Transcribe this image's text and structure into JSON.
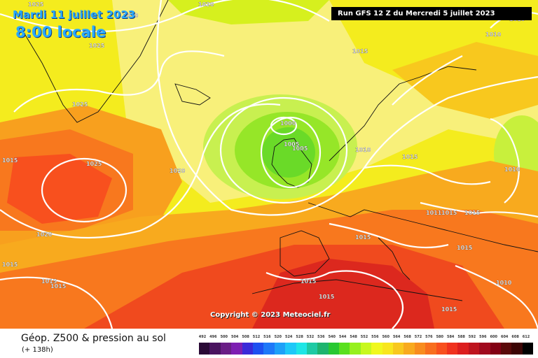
{
  "header": {
    "date": "Mardi 11 juillet 2023",
    "time": "8:00 locale",
    "run": "Run GFS 12 Z du Mercredi 5 juillet 2023"
  },
  "copyright": "Copyright © 2023 Meteociel.fr",
  "legend": {
    "title": "Géop. Z500 & pression au sol",
    "subtitle": "(+ 138h)",
    "scale_values": [
      "492",
      "496",
      "500",
      "504",
      "508",
      "512",
      "516",
      "520",
      "524",
      "528",
      "532",
      "536",
      "540",
      "544",
      "548",
      "552",
      "556",
      "560",
      "564",
      "568",
      "572",
      "576",
      "580",
      "584",
      "588",
      "592",
      "596",
      "600",
      "604",
      "608",
      "612"
    ],
    "scale_colors": [
      "#2a0a36",
      "#4a1460",
      "#6a1e86",
      "#7d1fb2",
      "#3a2ad8",
      "#1e50f0",
      "#1e78f8",
      "#1ea0f8",
      "#1ec8f8",
      "#1ee6e6",
      "#1ecaa4",
      "#1eb46e",
      "#28c832",
      "#5ae01e",
      "#96f01e",
      "#c8f81e",
      "#f0f81e",
      "#f8e61e",
      "#f8c81e",
      "#f8aa1e",
      "#f88c1e",
      "#f86e1e",
      "#f8501e",
      "#f0321e",
      "#dc1e1e",
      "#be141e",
      "#a00a1e",
      "#820014",
      "#5a0a0a",
      "#3c0505",
      "#000000"
    ]
  },
  "isobars": [
    "1025",
    "1030",
    "1020",
    "1025",
    "1010",
    "1015",
    "1010",
    "1025",
    "1000",
    "1005",
    "1005",
    "1010",
    "1015",
    "1015",
    "1025",
    "1020",
    "1020",
    "1010",
    "1011",
    "1015",
    "1015",
    "1015",
    "1015",
    "1015",
    "1015",
    "1015",
    "1015",
    "1015",
    "1010",
    "1015",
    "1005"
  ]
}
